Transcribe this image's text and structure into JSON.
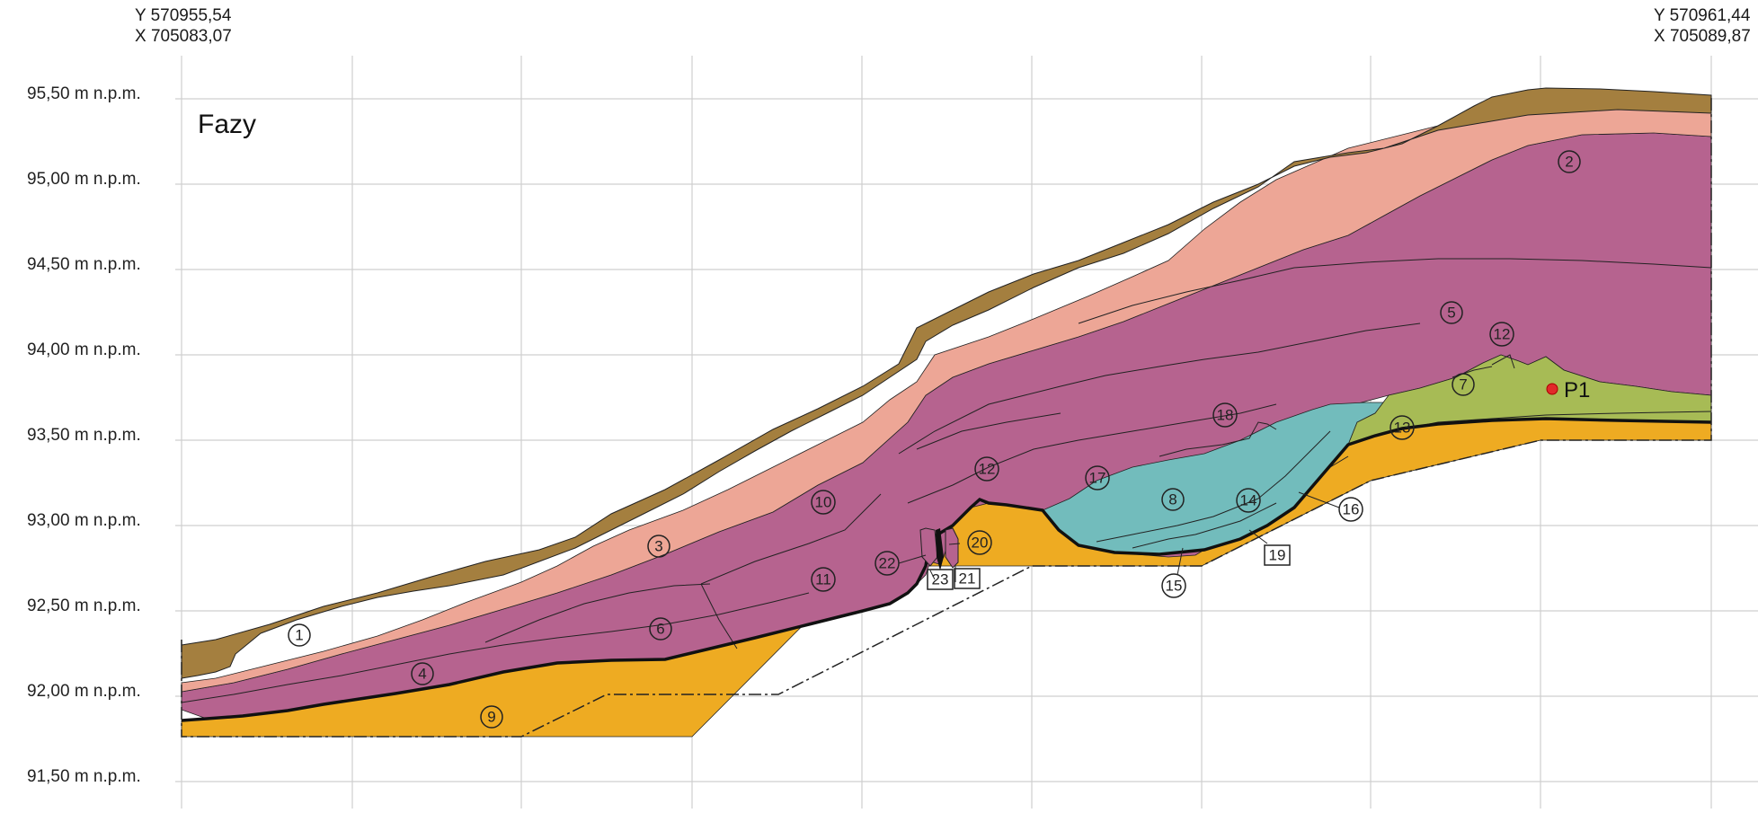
{
  "corners": {
    "left": {
      "y": "Y 570955,54",
      "x": "X 705083,07"
    },
    "right": {
      "y": "Y 570961,44",
      "x": "X 705089,87"
    }
  },
  "title": "Fazy",
  "elevations": [
    "95,50 m n.p.m.",
    "95,00 m n.p.m.",
    "94,50 m n.p.m.",
    "94,00 m n.p.m.",
    "93,50 m n.p.m.",
    "93,00 m n.p.m.",
    "92,50 m n.p.m.",
    "92,00 m n.p.m.",
    "91,50 m n.p.m."
  ],
  "point_label": "P1",
  "colors": {
    "brown": "#a47f3f",
    "salmon": "#eda696",
    "magenta": "#b6638f",
    "green": "#a7bb55",
    "teal": "#72bcbc",
    "orange": "#eeab22",
    "grid": "#cfcfcf",
    "point": "#e12a2a"
  },
  "labels": {
    "l1": "1",
    "l2": "2",
    "l3": "3",
    "l4": "4",
    "l5": "5",
    "l6": "6",
    "l7": "7",
    "l8": "8",
    "l9": "9",
    "l10": "10",
    "l11": "11",
    "l12a": "12",
    "l12b": "12",
    "l13": "13",
    "l14": "14",
    "l15": "15",
    "l16": "16",
    "l17": "17",
    "l18": "18",
    "l19": "19",
    "l20": "20",
    "l21": "21",
    "l22": "22",
    "l23": "23"
  }
}
